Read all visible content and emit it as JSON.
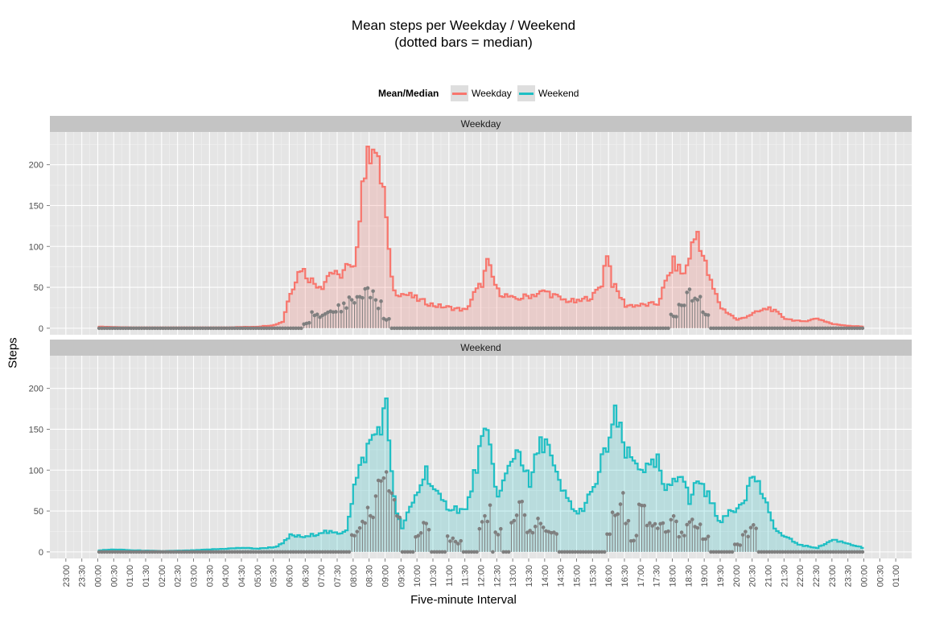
{
  "title": {
    "line1": "Mean steps per Weekday / Weekend",
    "line2": "(dotted bars = median)"
  },
  "legend": {
    "title": "Mean/Median",
    "items": [
      {
        "label": "Weekday",
        "color": "#f8766d"
      },
      {
        "label": "Weekend",
        "color": "#1fbfc4"
      }
    ]
  },
  "axes": {
    "ylabel": "Steps",
    "xlabel": "Five-minute Interval"
  },
  "colors": {
    "panel_bg": "#e5e5e5",
    "strip_bg": "#c4c4c4",
    "grid": "#ffffff",
    "median": "#7f7f7f"
  },
  "chart_data": {
    "type": "line",
    "style": "step with shaded area, median shown as lollipop (dotted) bars",
    "x_unit": "time of day (five-minute interval)",
    "xlim": [
      "23:00",
      "01:00 (+1 day)"
    ],
    "ylim": [
      -8,
      240
    ],
    "y_ticks": [
      0,
      50,
      100,
      150,
      200
    ],
    "x_tick_labels": [
      "23:00",
      "23:30",
      "00:00",
      "00:30",
      "01:00",
      "01:30",
      "02:00",
      "02:30",
      "03:00",
      "03:30",
      "04:00",
      "04:30",
      "05:00",
      "05:30",
      "06:00",
      "06:30",
      "07:00",
      "07:30",
      "08:00",
      "08:30",
      "09:00",
      "09:30",
      "10:00",
      "10:30",
      "11:00",
      "11:30",
      "12:00",
      "12:30",
      "13:00",
      "13:30",
      "14:00",
      "14:30",
      "15:00",
      "15:30",
      "16:00",
      "16:30",
      "17:00",
      "17:30",
      "18:00",
      "18:30",
      "19:00",
      "19:30",
      "20:00",
      "20:30",
      "21:00",
      "21:30",
      "22:00",
      "22:30",
      "23:00",
      "23:30",
      "00:00",
      "00:30",
      "01:00"
    ],
    "x_tick_hours": [
      -1,
      -0.5,
      0,
      0.5,
      1,
      1.5,
      2,
      2.5,
      3,
      3.5,
      4,
      4.5,
      5,
      5.5,
      6,
      6.5,
      7,
      7.5,
      8,
      8.5,
      9,
      9.5,
      10,
      10.5,
      11,
      11.5,
      12,
      12.5,
      13,
      13.5,
      14,
      14.5,
      15,
      15.5,
      16,
      16.5,
      17,
      17.5,
      18,
      18.5,
      19,
      19.5,
      20,
      20.5,
      21,
      21.5,
      22,
      22.5,
      23,
      23.5,
      24,
      24.5,
      25
    ],
    "panels": [
      {
        "name": "Weekday",
        "mean_points": [
          [
            0,
            2
          ],
          [
            1,
            1
          ],
          [
            2,
            1
          ],
          [
            3,
            1
          ],
          [
            4,
            1
          ],
          [
            5,
            2
          ],
          [
            5.5,
            4
          ],
          [
            5.75,
            8
          ],
          [
            6,
            45
          ],
          [
            6.17,
            60
          ],
          [
            6.33,
            75
          ],
          [
            6.5,
            65
          ],
          [
            6.75,
            55
          ],
          [
            7,
            52
          ],
          [
            7.25,
            70
          ],
          [
            7.5,
            62
          ],
          [
            7.75,
            75
          ],
          [
            8,
            70
          ],
          [
            8.25,
            180
          ],
          [
            8.42,
            205
          ],
          [
            8.58,
            235
          ],
          [
            8.75,
            195
          ],
          [
            8.92,
            170
          ],
          [
            9.08,
            90
          ],
          [
            9.25,
            45
          ],
          [
            9.5,
            42
          ],
          [
            9.75,
            40
          ],
          [
            10,
            35
          ],
          [
            10.5,
            28
          ],
          [
            11,
            25
          ],
          [
            11.5,
            22
          ],
          [
            11.75,
            42
          ],
          [
            12,
            55
          ],
          [
            12.17,
            80
          ],
          [
            12.33,
            62
          ],
          [
            12.5,
            45
          ],
          [
            13,
            35
          ],
          [
            13.5,
            40
          ],
          [
            14,
            45
          ],
          [
            14.5,
            35
          ],
          [
            15,
            32
          ],
          [
            15.5,
            40
          ],
          [
            15.75,
            55
          ],
          [
            15.92,
            95
          ],
          [
            16.08,
            55
          ],
          [
            16.5,
            28
          ],
          [
            17,
            28
          ],
          [
            17.5,
            30
          ],
          [
            17.75,
            55
          ],
          [
            18,
            80
          ],
          [
            18.33,
            65
          ],
          [
            18.58,
            100
          ],
          [
            18.75,
            118
          ],
          [
            18.92,
            88
          ],
          [
            19.17,
            55
          ],
          [
            19.5,
            25
          ],
          [
            20,
            10
          ],
          [
            20.5,
            18
          ],
          [
            21,
            25
          ],
          [
            21.5,
            12
          ],
          [
            22,
            8
          ],
          [
            22.5,
            12
          ],
          [
            23,
            5
          ],
          [
            23.5,
            3
          ],
          [
            23.92,
            2
          ]
        ],
        "median_points": [
          [
            6.5,
            8
          ],
          [
            6.75,
            20
          ],
          [
            7,
            18
          ],
          [
            7.25,
            25
          ],
          [
            7.5,
            32
          ],
          [
            7.75,
            40
          ],
          [
            8,
            48
          ],
          [
            8.25,
            50
          ],
          [
            8.5,
            55
          ],
          [
            8.75,
            38
          ],
          [
            9,
            15
          ],
          [
            18,
            20
          ],
          [
            18.25,
            35
          ],
          [
            18.5,
            48
          ],
          [
            18.75,
            40
          ],
          [
            19,
            25
          ]
        ]
      },
      {
        "name": "Weekend",
        "mean_points": [
          [
            0,
            2
          ],
          [
            0.5,
            3
          ],
          [
            1,
            2
          ],
          [
            2,
            1
          ],
          [
            3,
            2
          ],
          [
            3.5,
            3
          ],
          [
            4,
            4
          ],
          [
            4.5,
            5
          ],
          [
            5,
            4
          ],
          [
            5.5,
            6
          ],
          [
            5.75,
            10
          ],
          [
            6,
            20
          ],
          [
            6.5,
            18
          ],
          [
            7,
            25
          ],
          [
            7.5,
            22
          ],
          [
            7.75,
            28
          ],
          [
            8,
            80
          ],
          [
            8.25,
            110
          ],
          [
            8.5,
            135
          ],
          [
            8.75,
            150
          ],
          [
            9,
            175
          ],
          [
            9.17,
            100
          ],
          [
            9.33,
            45
          ],
          [
            9.5,
            30
          ],
          [
            10,
            75
          ],
          [
            10.25,
            100
          ],
          [
            10.5,
            75
          ],
          [
            10.75,
            60
          ],
          [
            11,
            55
          ],
          [
            11.5,
            50
          ],
          [
            12,
            135
          ],
          [
            12.17,
            140
          ],
          [
            12.33,
            110
          ],
          [
            12.5,
            65
          ],
          [
            13,
            120
          ],
          [
            13.17,
            125
          ],
          [
            13.5,
            80
          ],
          [
            13.75,
            125
          ],
          [
            14,
            140
          ],
          [
            14.25,
            100
          ],
          [
            14.5,
            75
          ],
          [
            15,
            45
          ],
          [
            15.25,
            60
          ],
          [
            15.5,
            75
          ],
          [
            15.75,
            110
          ],
          [
            16,
            140
          ],
          [
            16.17,
            165
          ],
          [
            16.33,
            145
          ],
          [
            16.5,
            120
          ],
          [
            16.75,
            110
          ],
          [
            17,
            105
          ],
          [
            17.25,
            100
          ],
          [
            17.5,
            110
          ],
          [
            17.75,
            70
          ],
          [
            18,
            90
          ],
          [
            18.25,
            100
          ],
          [
            18.5,
            60
          ],
          [
            18.75,
            90
          ],
          [
            19,
            75
          ],
          [
            19.25,
            55
          ],
          [
            19.5,
            35
          ],
          [
            19.75,
            50
          ],
          [
            20,
            55
          ],
          [
            20.25,
            70
          ],
          [
            20.5,
            95
          ],
          [
            20.75,
            75
          ],
          [
            21,
            45
          ],
          [
            21.25,
            25
          ],
          [
            21.5,
            18
          ],
          [
            22,
            8
          ],
          [
            22.5,
            5
          ],
          [
            23,
            15
          ],
          [
            23.5,
            10
          ],
          [
            23.92,
            5
          ]
        ],
        "median_points": [
          [
            8,
            25
          ],
          [
            8.25,
            40
          ],
          [
            8.5,
            55
          ],
          [
            8.75,
            90
          ],
          [
            9,
            118
          ],
          [
            9.17,
            80
          ],
          [
            9.33,
            55
          ],
          [
            10,
            30
          ],
          [
            10.25,
            45
          ],
          [
            11,
            20
          ],
          [
            11.25,
            15
          ],
          [
            12,
            45
          ],
          [
            12.17,
            60
          ],
          [
            12.5,
            30
          ],
          [
            13,
            55
          ],
          [
            13.25,
            65
          ],
          [
            13.5,
            35
          ],
          [
            13.75,
            45
          ],
          [
            14,
            30
          ],
          [
            14.25,
            25
          ],
          [
            16,
            30
          ],
          [
            16.17,
            60
          ],
          [
            16.33,
            75
          ],
          [
            16.5,
            40
          ],
          [
            16.75,
            20
          ],
          [
            17,
            65
          ],
          [
            17.25,
            45
          ],
          [
            17.5,
            35
          ],
          [
            17.75,
            40
          ],
          [
            18,
            60
          ],
          [
            18.25,
            30
          ],
          [
            18.5,
            45
          ],
          [
            18.75,
            35
          ],
          [
            19,
            25
          ],
          [
            20,
            10
          ],
          [
            20.25,
            25
          ],
          [
            20.5,
            35
          ]
        ]
      }
    ]
  }
}
